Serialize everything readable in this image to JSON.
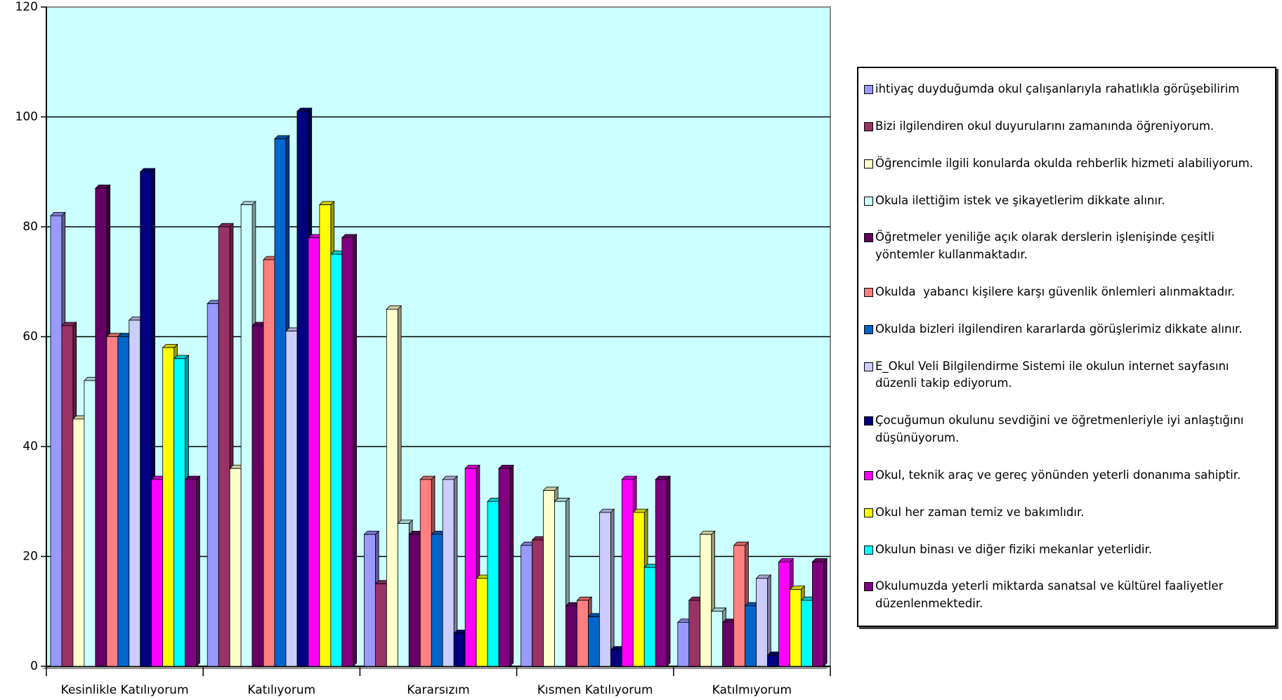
{
  "chart_data": {
    "type": "bar",
    "categories": [
      "Kesinlikle Katılıyorum",
      "Katılıyorum",
      "Kararsızım",
      "Kısmen Katılıyorum",
      "Katılmıyorum"
    ],
    "series": [
      {
        "name": "ihtiyaç duyduğumda okul çalışanlarıyla rahatlıkla görüşebilirim",
        "color": "#9999ff",
        "values": [
          82,
          66,
          24,
          22,
          8
        ]
      },
      {
        "name": "Bizi ilgilendiren okul duyurularını zamanında öğreniyorum.",
        "color": "#993366",
        "values": [
          62,
          80,
          15,
          23,
          12
        ]
      },
      {
        "name": "Öğrencimle ilgili konularda okulda rehberlik hizmeti alabiliyorum.",
        "color": "#ffffcc",
        "values": [
          45,
          36,
          65,
          32,
          24
        ]
      },
      {
        "name": "Okula ilettiğim istek ve şikayetlerim dikkate alınır.",
        "color": "#ccffff",
        "values": [
          52,
          84,
          26,
          30,
          10
        ]
      },
      {
        "name": "Öğretmeler yeniliğe açık olarak derslerin işlenişinde çeşitli yöntemler kullanmaktadır.",
        "color": "#660066",
        "values": [
          87,
          62,
          24,
          11,
          8
        ]
      },
      {
        "name": "Okulda  yabancı kişilere karşı güvenlik önlemleri alınmaktadır.",
        "color": "#ff8080",
        "values": [
          60,
          74,
          34,
          12,
          22
        ]
      },
      {
        "name": "Okulda bizleri ilgilendiren kararlarda görüşlerimiz dikkate alınır.",
        "color": "#0066cc",
        "values": [
          60,
          96,
          24,
          9,
          11
        ]
      },
      {
        "name": "E_Okul Veli Bilgilendirme Sistemi ile okulun internet sayfasını düzenli takip ediyorum.",
        "color": "#ccccff",
        "values": [
          63,
          61,
          34,
          28,
          16
        ]
      },
      {
        "name": "Çocuğumun okulunu sevdiğini ve öğretmenleriyle iyi anlaştığını düşünüyorum.",
        "color": "#000080",
        "values": [
          90,
          101,
          6,
          3,
          2
        ]
      },
      {
        "name": "Okul, teknik araç ve gereç yönünden yeterli donanıma sahiptir.",
        "color": "#ff00ff",
        "values": [
          34,
          78,
          36,
          34,
          19
        ]
      },
      {
        "name": "Okul her zaman temiz ve bakımlıdır.",
        "color": "#ffff00",
        "values": [
          58,
          84,
          16,
          28,
          14
        ]
      },
      {
        "name": "Okulun binası ve diğer fiziki mekanlar yeterlidir.",
        "color": "#00ffff",
        "values": [
          56,
          75,
          30,
          18,
          12
        ]
      },
      {
        "name": "Okulumuzda yeterli miktarda sanatsal ve kültürel faaliyetler düzenlenmektedir.",
        "color": "#800080",
        "values": [
          34,
          78,
          36,
          34,
          19
        ]
      }
    ],
    "ylim": [
      0,
      120
    ],
    "yticks": [
      0,
      20,
      40,
      60,
      80,
      100,
      120
    ],
    "grid": true,
    "plot_background": "#ccffff",
    "legend": "right"
  }
}
